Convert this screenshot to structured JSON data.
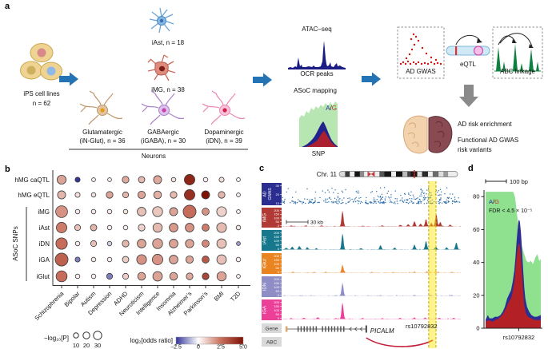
{
  "panels": {
    "a": "a",
    "b": "b",
    "c": "c",
    "d": "d"
  },
  "panel_a": {
    "ips_line1": "iPS cell lines",
    "ips_line2": "n = 62",
    "iast_label": "iAst, n = 18",
    "img_label": "iMG, n = 38",
    "glut_line1": "Glutamatergic",
    "glut_line2": "(iN-Glut), n = 36",
    "gaba_line1": "GABAergic",
    "gaba_line2": "(iGABA), n = 30",
    "dopa_line1": "Dopaminergic",
    "dopa_line2": "(iDN), n = 39",
    "neurons_label": "Neurons",
    "atac_label": "ATAC–seq",
    "ocr_label": "OCR peaks",
    "asoc_label": "ASoC mapping",
    "allele_a": "A",
    "allele_sep": "/",
    "allele_g": "G",
    "snp_label": "SNP",
    "ad_gwas_label": "AD GWAS",
    "eqtl_label": "eQTL",
    "abc_label": "ABC linkage",
    "result1": "AD risk enrichment",
    "result2": "Functional AD GWAS",
    "result3": "risk variants"
  },
  "chart_data": [
    {
      "type": "scatter",
      "name": "trait-enrichment-bubble-matrix",
      "rows": [
        "hMG caQTL",
        "hMG eQTL",
        "iMG",
        "iAst",
        "iD N",
        "iGA",
        "iGlut"
      ],
      "row_group_label": "ASoC SNPs",
      "categories": [
        "Schizophrenia",
        "Bipolar",
        "Autism",
        "Depression",
        "ADHD",
        "Neuroticism",
        "Intelligence",
        "Insomnia",
        "Alzheimer’s",
        "Parkinson’s",
        "BMI",
        "T2D"
      ],
      "size_label": "−log₁₀[P]",
      "size_legend": [
        10,
        20,
        30
      ],
      "color_label": "log₂[odds ratio]",
      "color_ticks": [
        "−2.5",
        "0",
        "2.5",
        "5.0"
      ],
      "color_scale": {
        "neg": "#34349a",
        "mid": "#ffffff",
        "pos_mid": "#c9705d",
        "pos": "#7f1206"
      },
      "series": [
        {
          "name": "hMG caQTL",
          "neg_log10_p": [
            16,
            5,
            3,
            3,
            9,
            8,
            13,
            4,
            22,
            4,
            5,
            3
          ],
          "log2_or": [
            1.6,
            -2.5,
            0.3,
            0.3,
            1.5,
            1.2,
            1.5,
            0.5,
            4.5,
            0.3,
            0.6,
            0.2
          ]
        },
        {
          "name": "hMG eQTL",
          "neg_log10_p": [
            13,
            5,
            4,
            9,
            7,
            11,
            12,
            9,
            22,
            13,
            9,
            3
          ],
          "log2_or": [
            1.3,
            0.5,
            0.5,
            1.6,
            1.3,
            1.6,
            1.4,
            1.2,
            4.2,
            5.0,
            1.3,
            0.3
          ]
        },
        {
          "name": "iMG",
          "neg_log10_p": [
            28,
            4,
            4,
            4,
            4,
            15,
            20,
            13,
            33,
            10,
            19,
            3
          ],
          "log2_or": [
            1.9,
            0.4,
            0.4,
            0.4,
            0.5,
            1.1,
            1.0,
            1.6,
            2.6,
            1.9,
            0.8,
            0.3
          ]
        },
        {
          "name": "iAst",
          "neg_log10_p": [
            22,
            7,
            8,
            4,
            4,
            9,
            17,
            15,
            15,
            10,
            19,
            4
          ],
          "log2_or": [
            2.3,
            1.1,
            1.3,
            0.3,
            0.3,
            0.8,
            1.2,
            1.8,
            1.9,
            2.3,
            1.2,
            0.4
          ]
        },
        {
          "name": "iDN",
          "neg_log10_p": [
            26,
            4,
            7,
            4,
            9,
            15,
            20,
            15,
            14,
            10,
            18,
            3
          ],
          "log2_or": [
            2.6,
            0.4,
            1.1,
            -0.6,
            1.3,
            1.6,
            1.6,
            1.6,
            1.6,
            2.1,
            1.1,
            -1.2
          ]
        },
        {
          "name": "iGA",
          "neg_log10_p": [
            33,
            5,
            4,
            4,
            8,
            19,
            22,
            15,
            11,
            10,
            18,
            4
          ],
          "log2_or": [
            2.9,
            -1.6,
            0.4,
            0.3,
            0.9,
            1.9,
            1.9,
            1.6,
            1.6,
            3.1,
            1.1,
            0.3
          ]
        },
        {
          "name": "iGlut",
          "neg_log10_p": [
            24,
            4,
            4,
            7,
            7,
            12,
            18,
            12,
            9,
            9,
            17,
            3
          ],
          "log2_or": [
            2.6,
            0.3,
            0.3,
            -1.6,
            0.9,
            1.6,
            1.6,
            1.6,
            1.5,
            3.6,
            1.6,
            0.3
          ]
        }
      ]
    },
    {
      "type": "area",
      "name": "genome-browser-tracks",
      "title": "Chr. 11",
      "scalebar": "30 kb",
      "highlight_snp": "rs10792832",
      "highlight_band": [
        0.82,
        0.861
      ],
      "ideogram": {
        "marker": 0.63,
        "centromere": [
          0.24,
          0.3
        ],
        "bands": [
          [
            0,
            0.05,
            "#d8d8d8"
          ],
          [
            0.05,
            0.09,
            "#3a3a3a"
          ],
          [
            0.09,
            0.13,
            "#eeeeee"
          ],
          [
            0.13,
            0.175,
            "#141414"
          ],
          [
            0.175,
            0.21,
            "#8a8a8a"
          ],
          [
            0.3,
            0.34,
            "#eeeeee"
          ],
          [
            0.34,
            0.38,
            "#555555"
          ],
          [
            0.38,
            0.44,
            "#161616"
          ],
          [
            0.44,
            0.48,
            "#eeeeee"
          ],
          [
            0.48,
            0.535,
            "#111111"
          ],
          [
            0.535,
            0.575,
            "#bbbbbb"
          ],
          [
            0.575,
            0.605,
            "#444444"
          ],
          [
            0.605,
            0.66,
            "#161616"
          ],
          [
            0.66,
            0.7,
            "#dddddd"
          ],
          [
            0.7,
            0.75,
            "#2a2a2a"
          ],
          [
            0.75,
            0.79,
            "#eeeeee"
          ],
          [
            0.79,
            0.84,
            "#6a6a6a"
          ],
          [
            0.84,
            0.88,
            "#dddddd"
          ],
          [
            0.88,
            0.92,
            "#999999"
          ]
        ]
      },
      "gwas_track": {
        "label": "AD GWAS",
        "color": "#2b2d90",
        "yticks": [
          30,
          20,
          10
        ],
        "ymax": 33
      },
      "tracks": [
        {
          "label": "iMG",
          "color": "#b23a34",
          "yticks": [
            200,
            150,
            100,
            50,
            0
          ],
          "peaks": [
            [
              0.337,
              0.95
            ],
            [
              0.05,
              0.05
            ],
            [
              0.13,
              0.04
            ],
            [
              0.22,
              0.05
            ],
            [
              0.45,
              0.04
            ],
            [
              0.56,
              0.05
            ],
            [
              0.66,
              0.08
            ],
            [
              0.705,
              0.13
            ],
            [
              0.74,
              0.3
            ],
            [
              0.775,
              0.16
            ],
            [
              0.805,
              0.45
            ],
            [
              0.835,
              0.2
            ],
            [
              0.862,
              0.8
            ],
            [
              0.885,
              0.26
            ],
            [
              0.94,
              0.1
            ]
          ]
        },
        {
          "label": "iAst",
          "color": "#17778c",
          "yticks": [
            200,
            150,
            100,
            50,
            0
          ],
          "peaks": [
            [
              0.02,
              0.1
            ],
            [
              0.055,
              0.16
            ],
            [
              0.095,
              0.2
            ],
            [
              0.14,
              0.1
            ],
            [
              0.19,
              0.07
            ],
            [
              0.337,
              0.92
            ],
            [
              0.44,
              0.07
            ],
            [
              0.55,
              0.25
            ],
            [
              0.63,
              0.1
            ],
            [
              0.74,
              0.28
            ],
            [
              0.805,
              0.5
            ],
            [
              0.86,
              0.16
            ],
            [
              0.92,
              0.12
            ],
            [
              0.975,
              0.42
            ]
          ]
        },
        {
          "label": "iGlut",
          "color": "#ea8420",
          "yticks": [
            200,
            150,
            100,
            50,
            0
          ],
          "peaks": [
            [
              0.337,
              0.42
            ],
            [
              0.06,
              0.04
            ],
            [
              0.18,
              0.03
            ],
            [
              0.5,
              0.04
            ],
            [
              0.62,
              0.03
            ],
            [
              0.74,
              0.05
            ],
            [
              0.81,
              0.06
            ],
            [
              0.86,
              0.05
            ],
            [
              0.95,
              0.04
            ]
          ]
        },
        {
          "label": "iDN",
          "color": "#8e8dc6",
          "yticks": [
            200,
            150,
            100,
            50,
            0
          ],
          "peaks": [
            [
              0.337,
              0.75
            ],
            [
              0.1,
              0.03
            ],
            [
              0.3,
              0.03
            ],
            [
              0.55,
              0.03
            ],
            [
              0.74,
              0.04
            ],
            [
              0.83,
              0.05
            ],
            [
              0.95,
              0.04
            ]
          ]
        },
        {
          "label": "iGA",
          "color": "#ec3f97",
          "yticks": [
            200,
            150,
            100,
            50,
            0
          ],
          "peaks": [
            [
              0.337,
              0.95
            ],
            [
              0.05,
              0.05
            ],
            [
              0.12,
              0.07
            ],
            [
              0.2,
              0.09
            ],
            [
              0.3,
              0.05
            ],
            [
              0.45,
              0.05
            ],
            [
              0.56,
              0.04
            ],
            [
              0.66,
              0.06
            ],
            [
              0.74,
              0.08
            ],
            [
              0.8,
              0.07
            ],
            [
              0.88,
              0.06
            ],
            [
              0.96,
              0.06
            ]
          ]
        }
      ],
      "gene": {
        "row_label": "Gene",
        "name": "PICALM",
        "span": [
          0.022,
          0.47
        ],
        "exons": [
          0.088,
          0.105,
          0.122,
          0.139,
          0.156,
          0.173,
          0.19,
          0.225,
          0.242,
          0.259,
          0.276,
          0.293,
          0.31,
          0.327,
          0.344
        ],
        "arrows": [
          0.38,
          0.41,
          0.44
        ]
      },
      "abc": {
        "row_label": "ABC",
        "arc": [
          0.47,
          0.843
        ]
      }
    },
    {
      "type": "area",
      "name": "allele-specific-read-pileup",
      "scalebar": "100 bp",
      "allele_a": "A",
      "allele_sep": "/",
      "allele_g": "G",
      "fdr_label": "FDR < 4.5 × 10⁻⁵",
      "ylim": [
        0,
        84
      ],
      "yticks": [
        0,
        20,
        40,
        60,
        80
      ],
      "snp_label": "rs10792832",
      "snp_x": 0.6,
      "series": [
        {
          "name": "total-OCR",
          "color": "#8fe08f",
          "points": [
            [
              0,
              83
            ],
            [
              0.5,
              83
            ],
            [
              0.53,
              80
            ],
            [
              0.55,
              75
            ],
            [
              0.57,
              69
            ],
            [
              0.59,
              64
            ],
            [
              0.61,
              59
            ],
            [
              0.63,
              55
            ],
            [
              0.65,
              51
            ],
            [
              0.68,
              47
            ],
            [
              0.71,
              44
            ],
            [
              0.74,
              41
            ],
            [
              0.78,
              40
            ],
            [
              0.82,
              41
            ],
            [
              0.86,
              39
            ],
            [
              0.9,
              43
            ],
            [
              0.94,
              45
            ],
            [
              0.97,
              41
            ],
            [
              1,
              42
            ]
          ]
        },
        {
          "name": "allele-A",
          "color": "#2d2d96",
          "points": [
            [
              0,
              5
            ],
            [
              0.04,
              8
            ],
            [
              0.07,
              6
            ],
            [
              0.12,
              6
            ],
            [
              0.17,
              7
            ],
            [
              0.22,
              7
            ],
            [
              0.27,
              8
            ],
            [
              0.31,
              10
            ],
            [
              0.35,
              13
            ],
            [
              0.39,
              18
            ],
            [
              0.43,
              21
            ],
            [
              0.46,
              23
            ],
            [
              0.49,
              28
            ],
            [
              0.52,
              35
            ],
            [
              0.54,
              43
            ],
            [
              0.56,
              52
            ],
            [
              0.58,
              60
            ],
            [
              0.6,
              66
            ],
            [
              0.62,
              65
            ],
            [
              0.64,
              58
            ],
            [
              0.66,
              48
            ],
            [
              0.68,
              36
            ],
            [
              0.7,
              25
            ],
            [
              0.72,
              18
            ],
            [
              0.75,
              13
            ],
            [
              0.79,
              10
            ],
            [
              0.83,
              8
            ],
            [
              0.88,
              7
            ],
            [
              0.93,
              7
            ],
            [
              1,
              8
            ]
          ]
        },
        {
          "name": "allele-G",
          "color": "#b32025",
          "points": [
            [
              0,
              4
            ],
            [
              0.06,
              5
            ],
            [
              0.12,
              4
            ],
            [
              0.18,
              5
            ],
            [
              0.24,
              6
            ],
            [
              0.3,
              8
            ],
            [
              0.34,
              10
            ],
            [
              0.38,
              13
            ],
            [
              0.42,
              16
            ],
            [
              0.46,
              18
            ],
            [
              0.49,
              22
            ],
            [
              0.52,
              28
            ],
            [
              0.54,
              35
            ],
            [
              0.56,
              43
            ],
            [
              0.58,
              48
            ],
            [
              0.6,
              52
            ],
            [
              0.62,
              50
            ],
            [
              0.64,
              43
            ],
            [
              0.66,
              33
            ],
            [
              0.68,
              22
            ],
            [
              0.7,
              14
            ],
            [
              0.73,
              9
            ],
            [
              0.77,
              7
            ],
            [
              0.82,
              6
            ],
            [
              0.9,
              5
            ],
            [
              1,
              5
            ]
          ]
        }
      ]
    }
  ]
}
